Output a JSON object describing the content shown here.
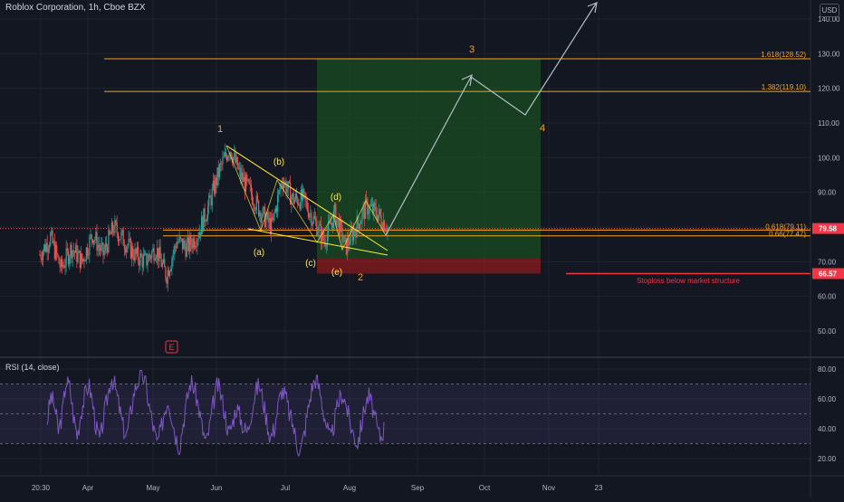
{
  "header": {
    "title": "Roblox Corporation, 1h, Cboe BZX",
    "currency": "USD"
  },
  "price_axis": {
    "ticks": [
      "140.00",
      "130.00",
      "120.00",
      "110.00",
      "100.00",
      "90.00",
      "80.00",
      "70.00",
      "60.00",
      "50.00"
    ],
    "last_price": "79.58",
    "stop_price": "66.57"
  },
  "rsi": {
    "title": "RSI (14, close)",
    "ticks": [
      "80.00",
      "60.00",
      "40.00",
      "20.00"
    ]
  },
  "time_axis": {
    "labels": [
      "20:30",
      "Apr",
      "May",
      "Jun",
      "Jul",
      "Aug",
      "Sep",
      "Oct",
      "Nov",
      "23"
    ]
  },
  "annotations": {
    "fib_1618": "1.618(128.52)",
    "fib_1382": "1.382(119.10)",
    "fib_0618": "0.618(79.11)",
    "fib_066": "0.66(77.47)",
    "wave_1": "1",
    "wave_2": "2",
    "wave_3": "3",
    "wave_4": "4",
    "wave_a": "(a)",
    "wave_b": "(b)",
    "wave_c": "(c)",
    "wave_d": "(d)",
    "wave_e": "(e)",
    "stoploss_note": "Stoploss below market structure",
    "earnings_marker": "E"
  },
  "colors": {
    "background": "#131722",
    "grid": "#1f2330",
    "axis_text": "#b2b5be",
    "candle_up": "#26a69a",
    "candle_down": "#ef5350",
    "rsi_line": "#7e57c2",
    "wave_label": "#f7a21b",
    "triangle": "#ffeb3b",
    "fib_line": "#f7a21b",
    "projection": "#b0bec5",
    "profit_zone": "#1b5e20",
    "stop_zone": "#b71c1c",
    "last_price_badge": "#f23645",
    "stop_price_badge": "#f23645"
  },
  "chart_data": [
    {
      "type": "candlestick",
      "title": "Roblox Corporation, 1h, Cboe BZX",
      "xlabel": "",
      "ylabel": "USD",
      "ylim": [
        41,
        145
      ],
      "x_ticks": [
        "20:30",
        "Apr",
        "May",
        "Jun",
        "Jul",
        "Aug",
        "Sep",
        "Oct",
        "Nov",
        "23"
      ],
      "y_ticks": [
        140,
        130,
        120,
        110,
        100,
        90,
        80,
        70,
        60,
        50
      ],
      "grid": true,
      "price_path": [
        [
          "20:30",
          72
        ],
        [
          "",
          77
        ],
        [
          "",
          68
        ],
        [
          "",
          74
        ],
        [
          "Apr",
          70
        ],
        [
          "",
          78
        ],
        [
          "",
          72
        ],
        [
          "",
          80
        ],
        [
          "",
          76
        ],
        [
          "",
          72
        ],
        [
          "",
          70
        ],
        [
          "May",
          74
        ],
        [
          "",
          66
        ],
        [
          "",
          76
        ],
        [
          "",
          74
        ],
        [
          "",
          78
        ],
        [
          "",
          86
        ],
        [
          "",
          96
        ],
        [
          "Jun",
          103
        ],
        [
          "",
          95
        ],
        [
          "",
          90
        ],
        [
          "",
          84
        ],
        [
          "",
          80
        ],
        [
          "",
          94
        ],
        [
          "",
          88
        ],
        [
          "Jul",
          88
        ],
        [
          "",
          82
        ],
        [
          "",
          76
        ],
        [
          "",
          84
        ],
        [
          "",
          74
        ],
        [
          "Aug",
          80
        ],
        [
          "",
          86
        ],
        [
          "",
          84
        ],
        [
          "",
          80
        ]
      ],
      "last_price": 79.58,
      "fib_levels": [
        {
          "label": "1.618(128.52)",
          "value": 128.52
        },
        {
          "label": "1.382(119.10)",
          "value": 119.1
        },
        {
          "label": "0.618(79.11)",
          "value": 79.11
        },
        {
          "label": "0.66(77.47)",
          "value": 77.47
        }
      ],
      "stop_level": 66.57,
      "profit_zone": [
        71,
        128.52
      ],
      "stop_zone": [
        66.57,
        71
      ]
    },
    {
      "type": "line",
      "title": "RSI (14, close)",
      "ylim": [
        10,
        85
      ],
      "y_ticks": [
        80,
        60,
        40,
        20
      ],
      "bands": [
        30,
        50,
        70
      ],
      "values": [
        45,
        62,
        55,
        38,
        50,
        72,
        68,
        48,
        35,
        52,
        62,
        70,
        58,
        40,
        32,
        48,
        62,
        75,
        68,
        55,
        42,
        35,
        50,
        65,
        72,
        78,
        70,
        55,
        42,
        30,
        38,
        52,
        60,
        48,
        35,
        28,
        45,
        60,
        72,
        66,
        55,
        40,
        30,
        42,
        58,
        70,
        62,
        50,
        36,
        44,
        55,
        48,
        40,
        38,
        52,
        64,
        70,
        60,
        46,
        34,
        40,
        55,
        66,
        62,
        50,
        42,
        30,
        25,
        38,
        54,
        68,
        74,
        66,
        52,
        40,
        32,
        46,
        58,
        64,
        56,
        44,
        36,
        30,
        42,
        56,
        62,
        54,
        42,
        34,
        40
      ]
    }
  ]
}
